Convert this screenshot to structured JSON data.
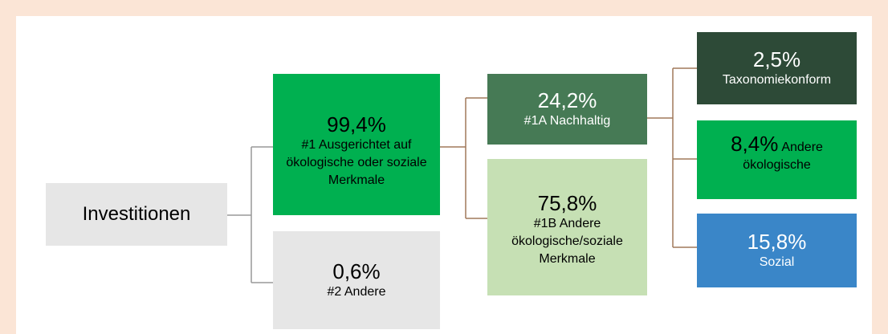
{
  "nodes": [
    {
      "value": null,
      "label": "Investitionen"
    },
    {
      "value": "99,4%",
      "label": "#1 Ausgerichtet auf ökologische oder soziale Merkmale"
    },
    {
      "value": "0,6%",
      "label": "#2 Andere"
    },
    {
      "value": "24,2%",
      "label": "#1A Nachhaltig"
    },
    {
      "value": "75,8%",
      "label": "#1B Andere ökologische/soziale Merkmale"
    },
    {
      "value": "2,5%",
      "label": "Taxonomiekonform"
    },
    {
      "value": "8,4%",
      "label": "Andere ökologische"
    },
    {
      "value": "15,8%",
      "label": "Sozial"
    }
  ]
}
